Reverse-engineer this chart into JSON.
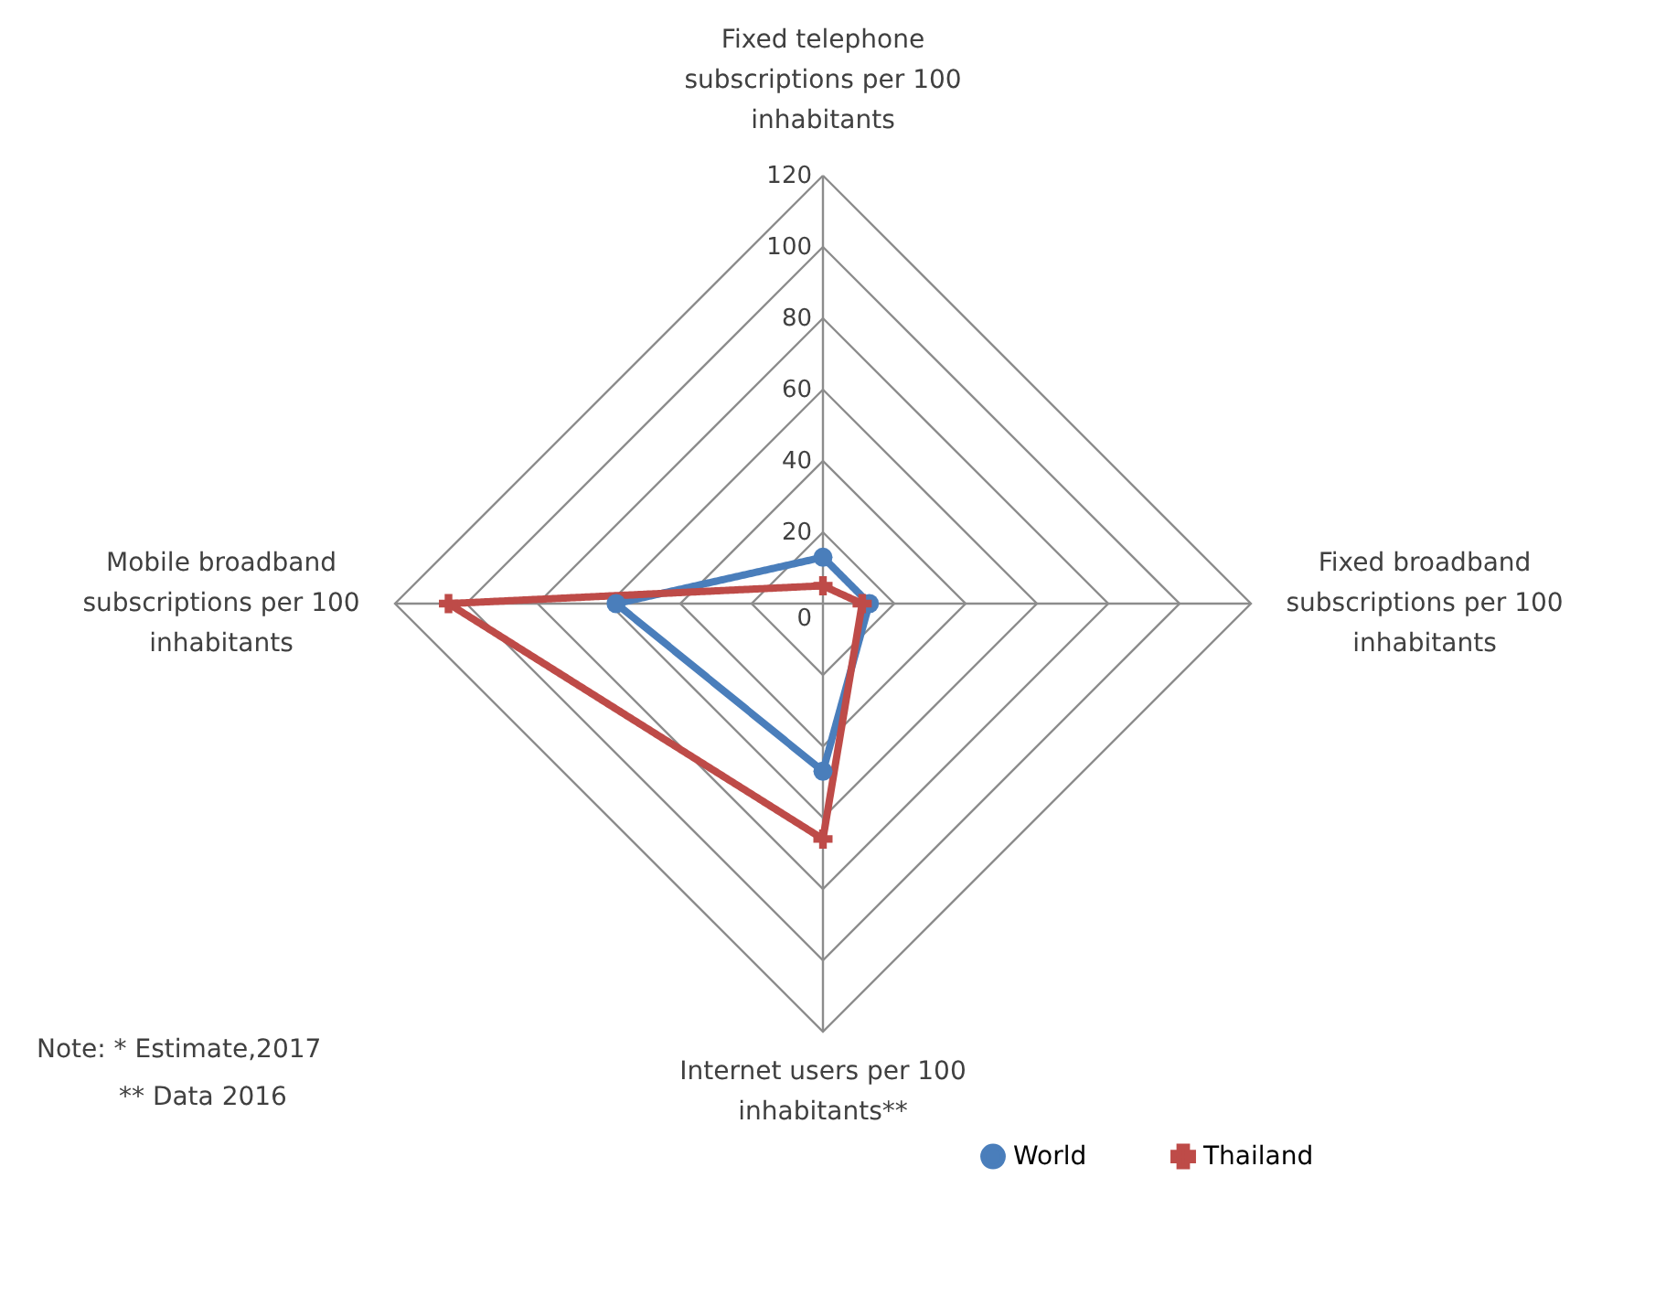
{
  "chart_data": {
    "type": "radar",
    "categories": [
      "Fixed telephone subscriptions per 100 inhabitants",
      "Fixed broadband subscriptions per 100 inhabitants",
      "Internet users per 100 inhabitants**",
      "Mobile broadband subscriptions per 100 inhabitants"
    ],
    "series": [
      {
        "name": "World",
        "color": "#4a7ebb",
        "marker": "circle",
        "values": [
          13,
          13,
          47,
          58
        ]
      },
      {
        "name": "Thailand",
        "color": "#be4b48",
        "marker": "cross",
        "values": [
          5,
          11,
          66,
          105
        ]
      }
    ],
    "ylim": [
      0,
      120
    ],
    "yticks": [
      0,
      20,
      40,
      60,
      80,
      100,
      120
    ],
    "grid": true,
    "legend": "bottom",
    "annotations": [
      "Note: * Estimate,2017",
      "** Data 2016"
    ]
  }
}
